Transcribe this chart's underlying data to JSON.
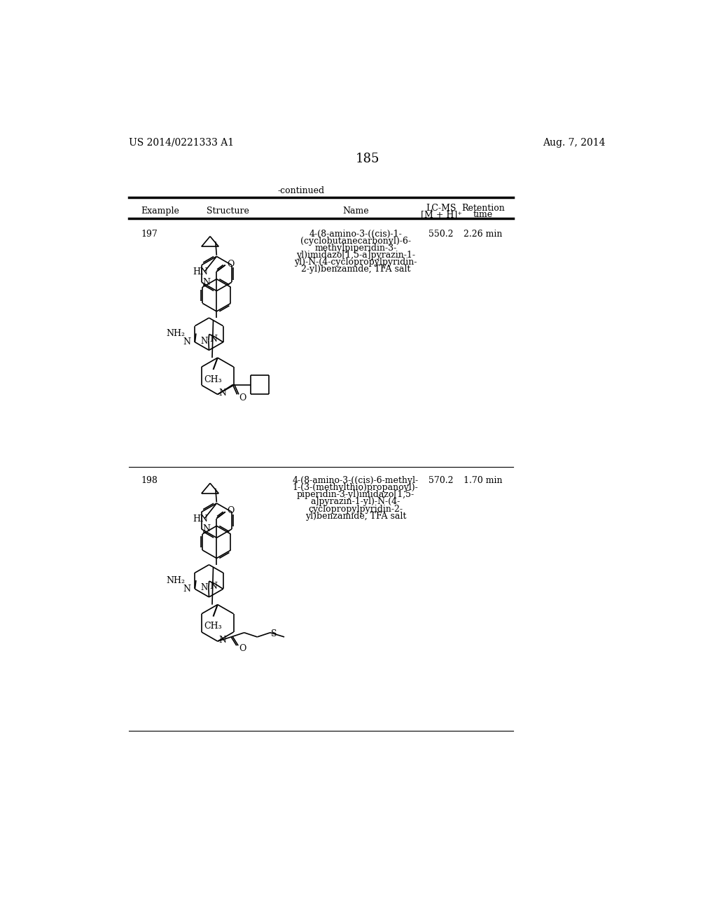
{
  "page_number": "185",
  "patent_number": "US 2014/0221333 A1",
  "patent_date": "Aug. 7, 2014",
  "continued_label": "-continued",
  "col_example": "Example",
  "col_structure": "Structure",
  "col_name": "Name",
  "col_lcms_1": "LC-MS",
  "col_lcms_2": "[M + H]⁺",
  "col_ret_1": "Retention",
  "col_ret_2": "time",
  "row1_example": "197",
  "row1_name_lines": [
    "4-(8-amino-3-((cis)-1-",
    "(cyclobutanecarbonyl)-6-",
    "methylpiperidin-3-",
    "yl)imidazo[1,5-a]pyrazin-1-",
    "yl)-N-(4-cyclopropylpyridin-",
    "2-yl)benzamide, TFA salt"
  ],
  "row1_lcms": "550.2",
  "row1_ret": "2.26 min",
  "row2_example": "198",
  "row2_name_lines": [
    "4-(8-amino-3-((cis)-6-methyl-",
    "1-(3-(methylthio)propanoyl)-",
    "piperidin-3-yl)imidazo[1,5-",
    "a]pyrazin-1-yl)-N-(4-",
    "cyclopropylpyridin-2-",
    "yl)benzamide, TFA salt"
  ],
  "row2_lcms": "570.2",
  "row2_ret": "1.70 min",
  "bg_color": "#ffffff",
  "text_color": "#000000"
}
